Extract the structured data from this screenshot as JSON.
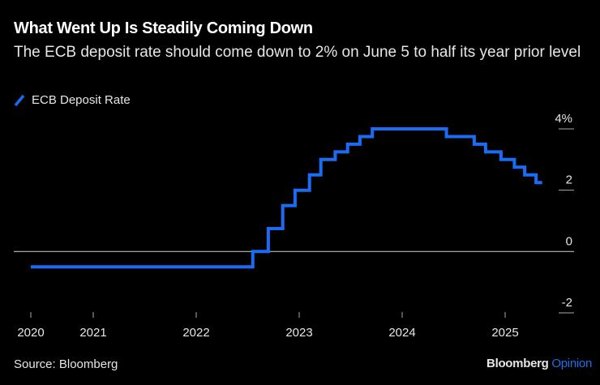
{
  "header": {
    "title": "What Went Up Is Steadily Coming Down",
    "subtitle": "The ECB deposit rate should come down to 2% on June 5 to half its year prior level"
  },
  "footer": {
    "source": "Source: Bloomberg",
    "brand": "Bloomberg",
    "brand_accent": "Opinion"
  },
  "colors": {
    "background": "#000000",
    "series": "#1a6cf5",
    "zero_line": "#bbbbbb",
    "tick": "#aaaaaa",
    "text": "#e6e6e6",
    "brand_accent": "#1f6fe8"
  },
  "chart_data": {
    "type": "line",
    "step": true,
    "title": "What Went Up Is Steadily Coming Down",
    "subtitle": "The ECB deposit rate should come down to 2% on June 5 to half its year prior level",
    "xlabel": "",
    "ylabel": "",
    "legend": {
      "position": "top-left",
      "entries": [
        "ECB Deposit Rate"
      ]
    },
    "grid": false,
    "y_unit": "%",
    "ylim": [
      -2,
      4
    ],
    "y_ticks": [
      {
        "value": 4,
        "label": "4%"
      },
      {
        "value": 2,
        "label": "2"
      },
      {
        "value": 0,
        "label": "0"
      },
      {
        "value": -2,
        "label": "-2"
      }
    ],
    "x_ticks": [
      {
        "date": 2020.4,
        "label": "2020"
      },
      {
        "date": 2021.0,
        "label": "2021"
      },
      {
        "date": 2022.0,
        "label": "2022"
      },
      {
        "date": 2023.0,
        "label": "2023"
      },
      {
        "date": 2024.0,
        "label": "2024"
      },
      {
        "date": 2025.0,
        "label": "2025"
      }
    ],
    "xlim": [
      2020.4,
      2025.36
    ],
    "series": [
      {
        "name": "ECB Deposit Rate",
        "points": [
          {
            "date": 2020.4,
            "value": -0.5
          },
          {
            "date": 2022.55,
            "value": 0.0
          },
          {
            "date": 2022.7,
            "value": 0.75
          },
          {
            "date": 2022.84,
            "value": 1.5
          },
          {
            "date": 2022.96,
            "value": 2.0
          },
          {
            "date": 2023.1,
            "value": 2.5
          },
          {
            "date": 2023.21,
            "value": 3.0
          },
          {
            "date": 2023.35,
            "value": 3.25
          },
          {
            "date": 2023.47,
            "value": 3.5
          },
          {
            "date": 2023.59,
            "value": 3.75
          },
          {
            "date": 2023.71,
            "value": 4.0
          },
          {
            "date": 2024.43,
            "value": 3.75
          },
          {
            "date": 2024.7,
            "value": 3.5
          },
          {
            "date": 2024.81,
            "value": 3.25
          },
          {
            "date": 2024.96,
            "value": 3.0
          },
          {
            "date": 2025.09,
            "value": 2.75
          },
          {
            "date": 2025.19,
            "value": 2.5
          },
          {
            "date": 2025.3,
            "value": 2.25
          },
          {
            "date": 2025.36,
            "value": 2.25
          }
        ]
      }
    ]
  }
}
